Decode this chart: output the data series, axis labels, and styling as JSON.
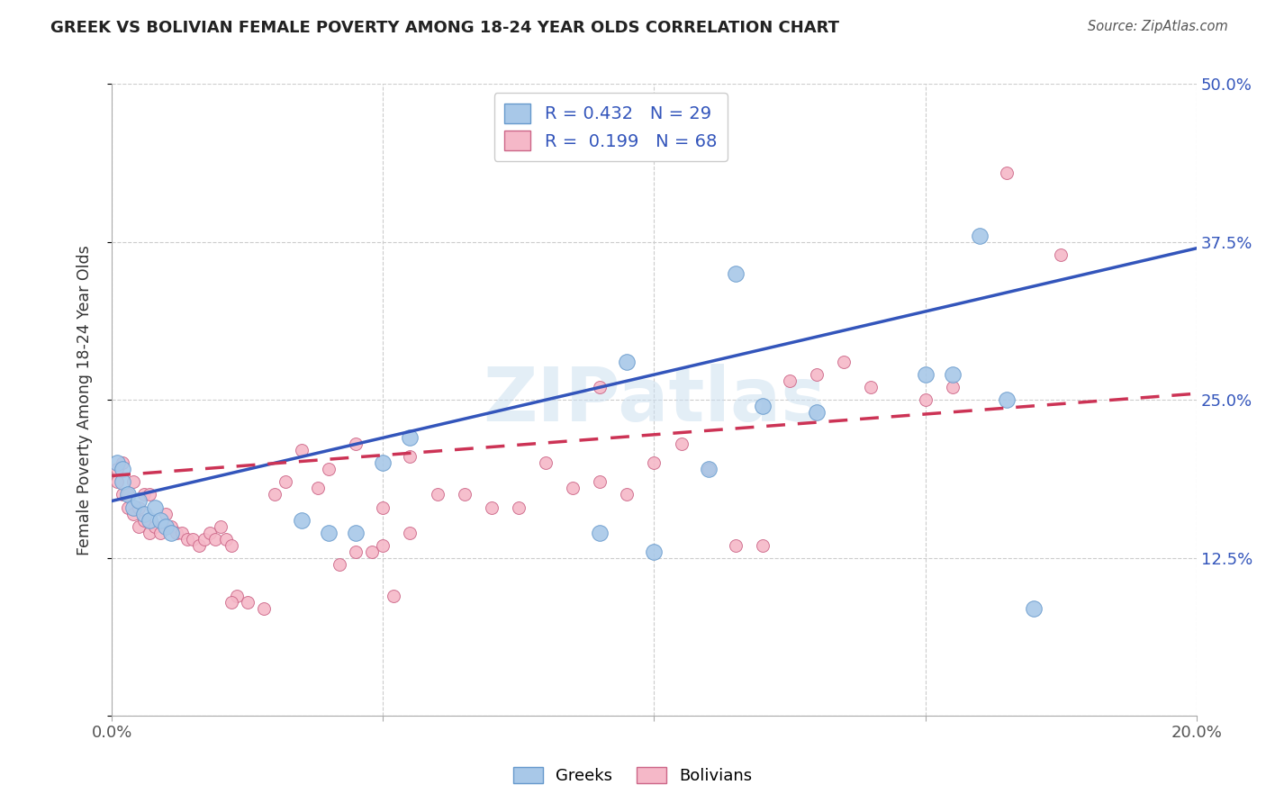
{
  "title": "GREEK VS BOLIVIAN FEMALE POVERTY AMONG 18-24 YEAR OLDS CORRELATION CHART",
  "source": "Source: ZipAtlas.com",
  "ylabel": "Female Poverty Among 18-24 Year Olds",
  "xlim": [
    0.0,
    0.2
  ],
  "ylim": [
    0.0,
    0.5
  ],
  "greek_color": "#a8c8e8",
  "greek_edge_color": "#6699cc",
  "bolivian_color": "#f5b8c8",
  "bolivian_edge_color": "#cc6688",
  "greek_line_color": "#3355bb",
  "bolivian_line_color": "#cc3355",
  "watermark": "ZIPatlas",
  "greek_points_x": [
    0.001,
    0.002,
    0.002,
    0.003,
    0.004,
    0.005,
    0.006,
    0.007,
    0.008,
    0.009,
    0.01,
    0.011,
    0.035,
    0.04,
    0.045,
    0.05,
    0.055,
    0.095,
    0.11,
    0.115,
    0.13,
    0.15,
    0.155,
    0.16,
    0.165,
    0.09,
    0.1,
    0.12,
    0.17
  ],
  "greek_points_y": [
    0.2,
    0.195,
    0.185,
    0.175,
    0.165,
    0.17,
    0.16,
    0.155,
    0.165,
    0.155,
    0.15,
    0.145,
    0.155,
    0.145,
    0.145,
    0.2,
    0.22,
    0.28,
    0.195,
    0.35,
    0.24,
    0.27,
    0.27,
    0.38,
    0.25,
    0.145,
    0.13,
    0.245,
    0.085
  ],
  "bolivian_points_x": [
    0.001,
    0.001,
    0.002,
    0.002,
    0.003,
    0.003,
    0.004,
    0.004,
    0.005,
    0.005,
    0.006,
    0.006,
    0.007,
    0.007,
    0.008,
    0.009,
    0.01,
    0.011,
    0.012,
    0.013,
    0.014,
    0.015,
    0.016,
    0.017,
    0.018,
    0.019,
    0.02,
    0.021,
    0.022,
    0.023,
    0.03,
    0.032,
    0.035,
    0.038,
    0.04,
    0.042,
    0.045,
    0.048,
    0.05,
    0.052,
    0.055,
    0.06,
    0.065,
    0.07,
    0.075,
    0.08,
    0.085,
    0.09,
    0.045,
    0.05,
    0.055,
    0.09,
    0.095,
    0.1,
    0.105,
    0.11,
    0.115,
    0.12,
    0.125,
    0.13,
    0.135,
    0.14,
    0.022,
    0.025,
    0.028,
    0.15,
    0.155,
    0.165,
    0.175
  ],
  "bolivian_points_y": [
    0.195,
    0.185,
    0.2,
    0.175,
    0.175,
    0.165,
    0.185,
    0.16,
    0.165,
    0.15,
    0.175,
    0.155,
    0.175,
    0.145,
    0.15,
    0.145,
    0.16,
    0.15,
    0.145,
    0.145,
    0.14,
    0.14,
    0.135,
    0.14,
    0.145,
    0.14,
    0.15,
    0.14,
    0.135,
    0.095,
    0.175,
    0.185,
    0.21,
    0.18,
    0.195,
    0.12,
    0.13,
    0.13,
    0.135,
    0.095,
    0.145,
    0.175,
    0.175,
    0.165,
    0.165,
    0.2,
    0.18,
    0.185,
    0.215,
    0.165,
    0.205,
    0.26,
    0.175,
    0.2,
    0.215,
    0.195,
    0.135,
    0.135,
    0.265,
    0.27,
    0.28,
    0.26,
    0.09,
    0.09,
    0.085,
    0.25,
    0.26,
    0.43,
    0.365
  ],
  "greek_line_x": [
    0.0,
    0.2
  ],
  "greek_line_y": [
    0.17,
    0.37
  ],
  "bolivian_line_x": [
    0.0,
    0.2
  ],
  "bolivian_line_y": [
    0.19,
    0.255
  ]
}
